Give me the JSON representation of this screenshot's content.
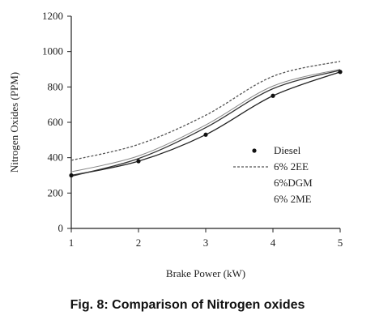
{
  "caption": "Fig. 8: Comparison of Nitrogen oxides",
  "chart_data": {
    "type": "line",
    "title": "",
    "xlabel": "Brake Power (kW)",
    "ylabel": "Nitrogen Oxides (PPM)",
    "x": [
      1,
      2,
      3,
      4,
      5
    ],
    "xlim": [
      1,
      5
    ],
    "ylim": [
      0,
      1200
    ],
    "xticks": [
      "1",
      "2",
      "3",
      "4",
      "5"
    ],
    "yticks": [
      "0",
      "200",
      "400",
      "600",
      "800",
      "1000",
      "1200"
    ],
    "grid": false,
    "legend_position": "center-right",
    "series": [
      {
        "name": "Diesel",
        "values": [
          300,
          380,
          530,
          750,
          885
        ],
        "style": "solid",
        "marker": "dot",
        "color": "#222222"
      },
      {
        "name": "6% 2EE",
        "values": [
          385,
          475,
          640,
          860,
          945
        ],
        "style": "dashed",
        "color": "#555555"
      },
      {
        "name": "6%DGM",
        "values": [
          295,
          395,
          570,
          790,
          895
        ],
        "style": "solid",
        "color": "#333333"
      },
      {
        "name": "6% 2ME",
        "values": [
          320,
          410,
          585,
          805,
          900
        ],
        "style": "solid-light",
        "color": "#888888"
      }
    ]
  }
}
